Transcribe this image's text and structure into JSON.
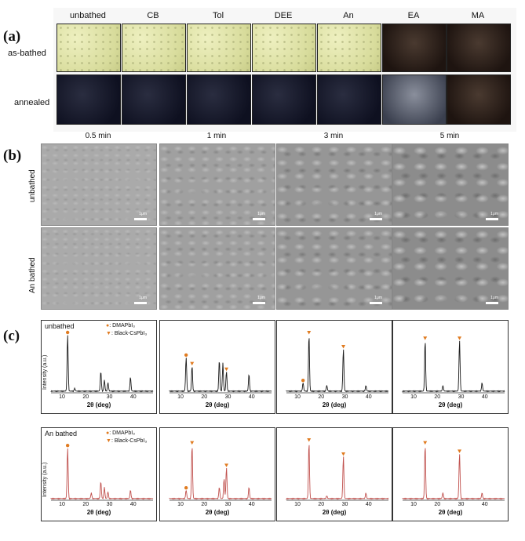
{
  "panel_labels": {
    "a": "(a)",
    "b": "(b)",
    "c": "(c)"
  },
  "panel_a": {
    "columns": [
      "unbathed",
      "CB",
      "Tol",
      "DEE",
      "An",
      "EA",
      "MA"
    ],
    "rows": [
      "as-bathed",
      "annealed"
    ],
    "row1_colors": [
      "yellow",
      "yellow",
      "yellow",
      "yellow",
      "yellow",
      "dark-brown",
      "dark-brown"
    ],
    "row2_colors": [
      "dark",
      "dark",
      "dark",
      "dark",
      "dark",
      "gray",
      "gray-mottled"
    ]
  },
  "times": [
    "0.5 min",
    "1 min",
    "3 min",
    "5 min"
  ],
  "panel_b": {
    "rows": [
      "unbathed",
      "An bathed"
    ],
    "scale_label": "1μm"
  },
  "panel_c": {
    "row_labels": [
      "unbathed",
      "An bathed"
    ],
    "legend": [
      "DMAPbI₃",
      "Black-CsPbI₃"
    ],
    "legend_prefix": ": ",
    "ylabel": "Intensity (a.u.)",
    "xlabel": "2θ (deg)",
    "xticks": [
      "10",
      "20",
      "30",
      "40"
    ]
  },
  "chart_data": [
    {
      "type": "line",
      "title": "unbathed 0.5 min",
      "xlabel": "2θ (deg)",
      "ylabel": "Intensity (a.u.)",
      "xlim": [
        5,
        48
      ],
      "x": [
        12.0,
        15.0,
        26.0,
        27.5,
        29.0,
        38.5
      ],
      "values": [
        1.0,
        0.05,
        0.35,
        0.2,
        0.15,
        0.25
      ],
      "color": "#1a1a1a",
      "markers": [
        {
          "x": 12.0,
          "type": "DMAPbI3"
        }
      ]
    },
    {
      "type": "line",
      "title": "unbathed 1 min",
      "xlabel": "2θ (deg)",
      "ylabel": "Intensity (a.u.)",
      "xlim": [
        5,
        48
      ],
      "x": [
        12.0,
        14.5,
        26.0,
        27.5,
        29.0,
        38.5
      ],
      "values": [
        0.6,
        0.45,
        0.55,
        0.5,
        0.35,
        0.3
      ],
      "color": "#1a1a1a",
      "markers": [
        {
          "x": 12.0,
          "type": "DMAPbI3"
        },
        {
          "x": 14.5,
          "type": "CsPbI3"
        },
        {
          "x": 29.0,
          "type": "CsPbI3"
        }
      ]
    },
    {
      "type": "line",
      "title": "unbathed 3 min",
      "xlabel": "2θ (deg)",
      "ylabel": "Intensity (a.u.)",
      "xlim": [
        5,
        48
      ],
      "x": [
        12.0,
        14.5,
        22.0,
        29.0,
        38.5
      ],
      "values": [
        0.15,
        1.0,
        0.1,
        0.75,
        0.1
      ],
      "color": "#1a1a1a",
      "markers": [
        {
          "x": 12.0,
          "type": "DMAPbI3"
        },
        {
          "x": 14.5,
          "type": "CsPbI3"
        },
        {
          "x": 29.0,
          "type": "CsPbI3"
        }
      ]
    },
    {
      "type": "line",
      "title": "unbathed 5 min",
      "xlabel": "2θ (deg)",
      "ylabel": "Intensity (a.u.)",
      "xlim": [
        5,
        48
      ],
      "x": [
        14.5,
        22.0,
        29.0,
        38.5
      ],
      "values": [
        0.9,
        0.1,
        0.9,
        0.15
      ],
      "color": "#1a1a1a",
      "markers": [
        {
          "x": 14.5,
          "type": "CsPbI3"
        },
        {
          "x": 29.0,
          "type": "CsPbI3"
        }
      ]
    },
    {
      "type": "line",
      "title": "An bathed 0.5 min",
      "xlabel": "2θ (deg)",
      "ylabel": "Intensity (a.u.)",
      "xlim": [
        5,
        48
      ],
      "x": [
        12.0,
        22.0,
        26.0,
        27.5,
        29.0,
        38.5
      ],
      "values": [
        0.9,
        0.1,
        0.3,
        0.2,
        0.12,
        0.15
      ],
      "color": "#c0504d",
      "markers": [
        {
          "x": 12.0,
          "type": "DMAPbI3"
        }
      ]
    },
    {
      "type": "line",
      "title": "An bathed 1 min",
      "xlabel": "2θ (deg)",
      "ylabel": "Intensity (a.u.)",
      "xlim": [
        5,
        48
      ],
      "x": [
        12.0,
        14.5,
        26.0,
        28.0,
        29.0,
        38.5
      ],
      "values": [
        0.15,
        0.95,
        0.2,
        0.35,
        0.55,
        0.2
      ],
      "color": "#c0504d",
      "markers": [
        {
          "x": 12.0,
          "type": "DMAPbI3"
        },
        {
          "x": 14.5,
          "type": "CsPbI3"
        },
        {
          "x": 29.0,
          "type": "CsPbI3"
        }
      ]
    },
    {
      "type": "line",
      "title": "An bathed 3 min",
      "xlabel": "2θ (deg)",
      "ylabel": "Intensity (a.u.)",
      "xlim": [
        5,
        48
      ],
      "x": [
        14.5,
        22.0,
        29.0,
        38.5
      ],
      "values": [
        1.0,
        0.05,
        0.75,
        0.1
      ],
      "color": "#c0504d",
      "markers": [
        {
          "x": 14.5,
          "type": "CsPbI3"
        },
        {
          "x": 29.0,
          "type": "CsPbI3"
        }
      ]
    },
    {
      "type": "line",
      "title": "An bathed 5 min",
      "xlabel": "2θ (deg)",
      "ylabel": "Intensity (a.u.)",
      "xlim": [
        5,
        48
      ],
      "x": [
        14.5,
        22.0,
        29.0,
        38.5
      ],
      "values": [
        0.95,
        0.1,
        0.8,
        0.1
      ],
      "color": "#c0504d",
      "markers": [
        {
          "x": 14.5,
          "type": "CsPbI3"
        },
        {
          "x": 29.0,
          "type": "CsPbI3"
        }
      ]
    }
  ]
}
